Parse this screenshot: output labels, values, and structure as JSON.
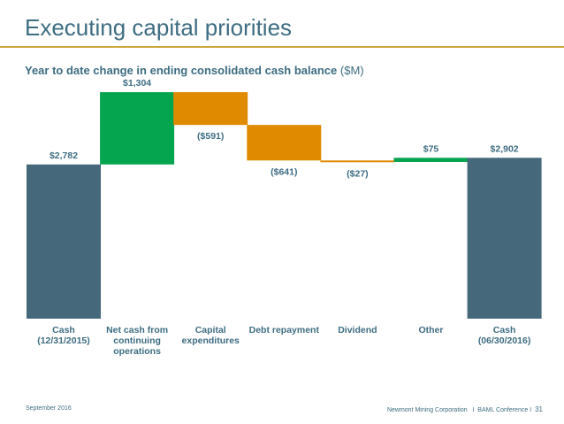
{
  "slide": {
    "title": "Executing capital priorities",
    "subtitle_bold": "Year to date change in ending consolidated cash balance",
    "subtitle_unit": "($M)",
    "footer_date": "September 2016",
    "footer_company": "Newmont Mining Corporation",
    "footer_separator_1": "I",
    "footer_event": "BAML Conference",
    "footer_separator_2": "I",
    "page_number": "31"
  },
  "colors": {
    "title": "#3e6d82",
    "rule": "#c9a73b",
    "total_bar": "#45687b",
    "increase_bar": "#05a44f",
    "decrease_bar": "#e08a00",
    "label_text": "#3e6d82"
  },
  "chart_data": {
    "type": "waterfall",
    "title": "Year to date change in ending consolidated cash balance ($M)",
    "units": "$M",
    "ylim": [
      0,
      4200
    ],
    "grid": false,
    "legend": "none",
    "steps": [
      {
        "category": "Cash\n(12/31/2015)",
        "label_lines": [
          "Cash",
          "(12/31/2015)"
        ],
        "value": 2782,
        "kind": "total",
        "label": "$2,782"
      },
      {
        "category": "Net cash from continuing operations",
        "label_lines": [
          "Net cash from",
          "continuing",
          "operations"
        ],
        "value": 1304,
        "kind": "increase",
        "label": "$1,304"
      },
      {
        "category": "Capital expenditures",
        "label_lines": [
          "Capital",
          "expenditures"
        ],
        "value": -591,
        "kind": "decrease",
        "label": "($591)"
      },
      {
        "category": "Debt repayment",
        "label_lines": [
          "Debt repayment"
        ],
        "value": -641,
        "kind": "decrease",
        "label": "($641)"
      },
      {
        "category": "Dividend",
        "label_lines": [
          "Dividend"
        ],
        "value": -27,
        "kind": "decrease",
        "label": "($27)"
      },
      {
        "category": "Other",
        "label_lines": [
          "Other"
        ],
        "value": 75,
        "kind": "increase",
        "label": "$75"
      },
      {
        "category": "Cash\n(06/30/2016)",
        "label_lines": [
          "Cash",
          "(06/30/2016)"
        ],
        "value": 2902,
        "kind": "total",
        "label": "$2,902"
      }
    ]
  }
}
